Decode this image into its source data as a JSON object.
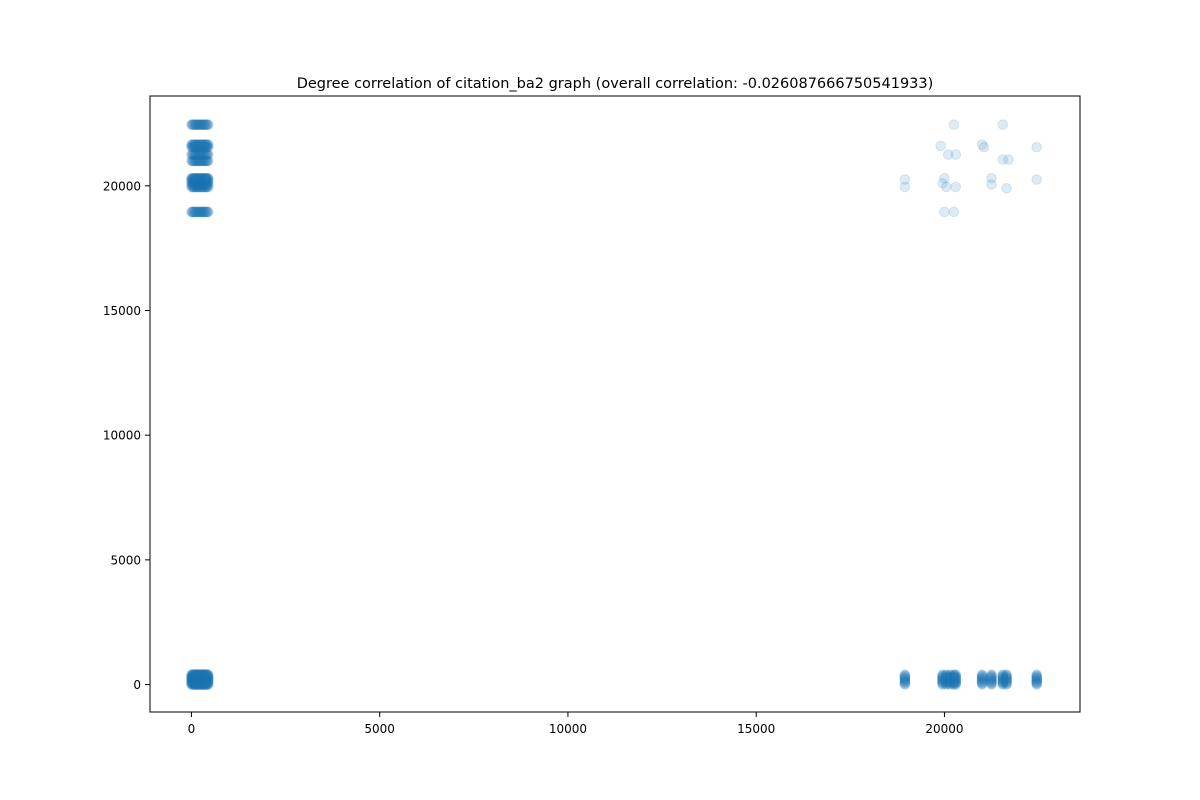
{
  "chart_data": {
    "type": "scatter",
    "title": "Degree correlation of citation_ba2 graph (overall correlation: -0.026087666750541933)",
    "xlabel": "",
    "ylabel": "",
    "xlim": [
      -1100,
      23600
    ],
    "ylim": [
      -1100,
      23600
    ],
    "x_ticks": [
      0,
      5000,
      10000,
      15000,
      20000
    ],
    "y_ticks": [
      0,
      5000,
      10000,
      15000,
      20000
    ],
    "x_tick_labels": [
      "0",
      "5000",
      "10000",
      "15000",
      "20000"
    ],
    "y_tick_labels": [
      "0",
      "5000",
      "10000",
      "15000",
      "20000"
    ],
    "grid": false,
    "marker_color": "#1f77b4",
    "marker_alpha": 0.15,
    "dense_clusters": [
      {
        "x_range": [
          0,
          450
        ],
        "y_values": [
          18950,
          19950,
          20050,
          20150,
          20250,
          20300,
          21000,
          21250,
          21550,
          21650,
          22450
        ]
      },
      {
        "x_range": [
          0,
          450
        ],
        "y_range": [
          0,
          400
        ]
      },
      {
        "x_values": [
          18950,
          19950,
          20050,
          20150,
          20250,
          20300,
          21000,
          21250,
          21550,
          21650,
          22450
        ],
        "y_range": [
          0,
          400
        ]
      }
    ],
    "points": [
      [
        18950,
        20250
      ],
      [
        18950,
        19950
      ],
      [
        19900,
        21600
      ],
      [
        19950,
        20100
      ],
      [
        20000,
        20300
      ],
      [
        20000,
        18950
      ],
      [
        20050,
        19950
      ],
      [
        20100,
        21250
      ],
      [
        20250,
        22450
      ],
      [
        20250,
        18950
      ],
      [
        20300,
        21250
      ],
      [
        20300,
        19950
      ],
      [
        21000,
        21650
      ],
      [
        21050,
        21550
      ],
      [
        21250,
        20300
      ],
      [
        21250,
        20050
      ],
      [
        21550,
        22450
      ],
      [
        21550,
        21050
      ],
      [
        21650,
        19900
      ],
      [
        21700,
        21050
      ],
      [
        22450,
        21550
      ],
      [
        22450,
        20250
      ]
    ]
  }
}
